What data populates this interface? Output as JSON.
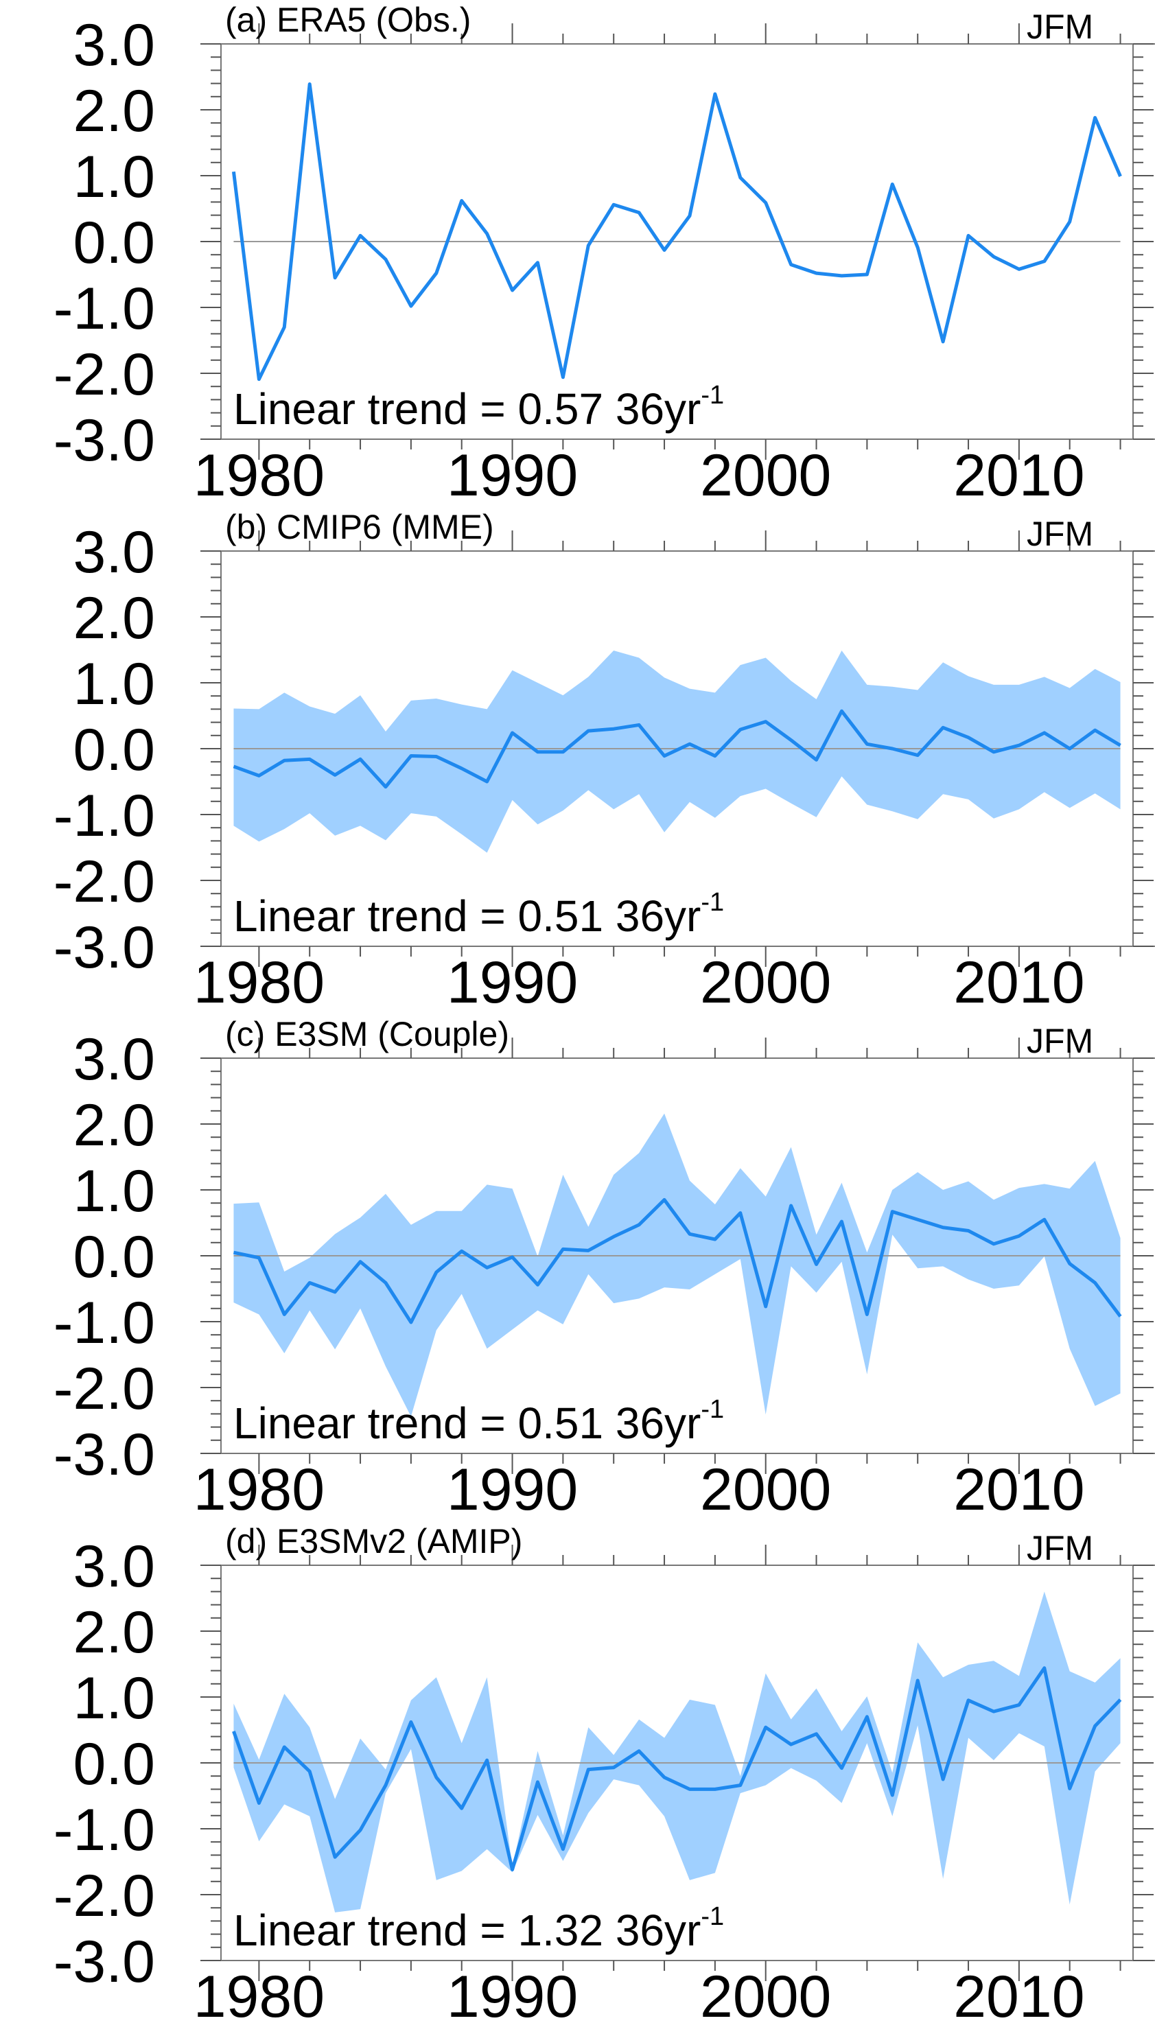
{
  "colors": {
    "line": "#1e88ee",
    "band": "#a0d0ff"
  },
  "chart_data": [
    {
      "type": "line",
      "title": "(a) ERA5 (Obs.)",
      "season": "JFM",
      "trend_label": "Linear trend = 0.57 36yr",
      "trend_superscript": "-1",
      "xlim": [
        1978.5,
        2014.5
      ],
      "ylim": [
        -3,
        3
      ],
      "xticks": [
        1980,
        1990,
        2000,
        2010
      ],
      "xtick_labels": [
        "1980",
        "1990",
        "2000",
        "2010"
      ],
      "yticks": [
        3,
        2,
        1,
        0,
        -1,
        -2,
        -3
      ],
      "ytick_labels": [
        "3.0",
        "2.0",
        "1.0",
        "0.0",
        "-1.0",
        "-2.0",
        "-3.0"
      ],
      "x_start": 1979,
      "series": [
        {
          "name": "mean",
          "values": [
            1.06,
            -2.09,
            -1.3,
            2.39,
            -0.55,
            0.09,
            -0.27,
            -0.98,
            -0.48,
            0.62,
            0.12,
            -0.74,
            -0.32,
            -2.06,
            -0.06,
            0.56,
            0.44,
            -0.13,
            0.39,
            2.24,
            0.97,
            0.59,
            -0.35,
            -0.48,
            -0.52,
            -0.5,
            0.87,
            -0.09,
            -1.52,
            0.09,
            -0.23,
            -0.42,
            -0.3,
            0.3,
            1.88,
            0.99
          ]
        }
      ]
    },
    {
      "type": "line",
      "title": "(b) CMIP6 (MME)",
      "season": "JFM",
      "trend_label": "Linear trend = 0.51 36yr",
      "trend_superscript": "-1",
      "xlim": [
        1978.5,
        2014.5
      ],
      "ylim": [
        -3,
        3
      ],
      "xticks": [
        1980,
        1990,
        2000,
        2010
      ],
      "xtick_labels": [
        "1980",
        "1990",
        "2000",
        "2010"
      ],
      "yticks": [
        3,
        2,
        1,
        0,
        -1,
        -2,
        -3
      ],
      "ytick_labels": [
        "3.0",
        "2.0",
        "1.0",
        "0.0",
        "-1.0",
        "-2.0",
        "-3.0"
      ],
      "x_start": 1979,
      "series": [
        {
          "name": "mean",
          "values": [
            -0.27,
            -0.41,
            -0.18,
            -0.16,
            -0.4,
            -0.16,
            -0.58,
            -0.11,
            -0.12,
            -0.3,
            -0.5,
            0.24,
            -0.05,
            -0.05,
            0.27,
            0.3,
            0.36,
            -0.11,
            0.07,
            -0.11,
            0.29,
            0.41,
            0.13,
            -0.17,
            0.57,
            0.07,
            0.0,
            -0.1,
            0.32,
            0.17,
            -0.05,
            0.05,
            0.24,
            0.0,
            0.28,
            0.05
          ]
        },
        {
          "name": "upper",
          "values": [
            0.61,
            0.6,
            0.85,
            0.64,
            0.53,
            0.81,
            0.26,
            0.73,
            0.76,
            0.67,
            0.6,
            1.19,
            1.0,
            0.81,
            1.09,
            1.49,
            1.38,
            1.08,
            0.91,
            0.85,
            1.27,
            1.38,
            1.03,
            0.75,
            1.49,
            0.97,
            0.94,
            0.89,
            1.31,
            1.1,
            0.97,
            0.97,
            1.09,
            0.92,
            1.21,
            1.01
          ]
        },
        {
          "name": "lower",
          "values": [
            -1.17,
            -1.41,
            -1.22,
            -0.98,
            -1.32,
            -1.17,
            -1.39,
            -0.98,
            -1.03,
            -1.3,
            -1.58,
            -0.78,
            -1.15,
            -0.94,
            -0.63,
            -0.92,
            -0.69,
            -1.27,
            -0.81,
            -1.05,
            -0.72,
            -0.61,
            -0.83,
            -1.04,
            -0.42,
            -0.85,
            -0.95,
            -1.07,
            -0.69,
            -0.77,
            -1.06,
            -0.92,
            -0.66,
            -0.9,
            -0.68,
            -0.92
          ]
        }
      ]
    },
    {
      "type": "line",
      "title": "(c) E3SM (Couple)",
      "season": "JFM",
      "trend_label": "Linear trend = 0.51 36yr",
      "trend_superscript": "-1",
      "xlim": [
        1978.5,
        2014.5
      ],
      "ylim": [
        -3,
        3
      ],
      "xticks": [
        1980,
        1990,
        2000,
        2010
      ],
      "xtick_labels": [
        "1980",
        "1990",
        "2000",
        "2010"
      ],
      "yticks": [
        3,
        2,
        1,
        0,
        -1,
        -2,
        -3
      ],
      "ytick_labels": [
        "3.0",
        "2.0",
        "1.0",
        "0.0",
        "-1.0",
        "-2.0",
        "-3.0"
      ],
      "x_start": 1979,
      "series": [
        {
          "name": "mean",
          "values": [
            0.05,
            -0.03,
            -0.89,
            -0.41,
            -0.55,
            -0.09,
            -0.41,
            -1.01,
            -0.25,
            0.07,
            -0.18,
            -0.02,
            -0.44,
            0.1,
            0.08,
            0.29,
            0.47,
            0.85,
            0.33,
            0.25,
            0.65,
            -0.77,
            0.76,
            -0.13,
            0.52,
            -0.89,
            0.67,
            0.55,
            0.43,
            0.38,
            0.18,
            0.3,
            0.55,
            -0.12,
            -0.41,
            -0.92
          ]
        },
        {
          "name": "upper",
          "values": [
            0.79,
            0.81,
            -0.24,
            -0.03,
            0.33,
            0.58,
            0.94,
            0.47,
            0.68,
            0.68,
            1.08,
            1.02,
            -0.01,
            1.23,
            0.44,
            1.23,
            1.56,
            2.16,
            1.14,
            0.78,
            1.33,
            0.9,
            1.65,
            0.32,
            1.11,
            0.05,
            1.0,
            1.27,
            1.0,
            1.13,
            0.85,
            1.03,
            1.09,
            1.02,
            1.44,
            0.27
          ]
        },
        {
          "name": "lower",
          "values": [
            -0.71,
            -0.89,
            -1.48,
            -0.83,
            -1.42,
            -0.8,
            -1.68,
            -2.44,
            -1.13,
            -0.58,
            -1.41,
            -1.12,
            -0.83,
            -1.04,
            -0.28,
            -0.72,
            -0.65,
            -0.48,
            -0.51,
            -0.28,
            -0.05,
            -2.41,
            -0.16,
            -0.56,
            -0.09,
            -1.8,
            0.32,
            -0.19,
            -0.16,
            -0.36,
            -0.5,
            -0.45,
            -0.01,
            -1.41,
            -2.28,
            -2.09
          ]
        }
      ]
    },
    {
      "type": "line",
      "title": "(d) E3SMv2 (AMIP)",
      "season": "JFM",
      "trend_label": "Linear trend = 1.32 36yr",
      "trend_superscript": "-1",
      "xlim": [
        1978.5,
        2014.5
      ],
      "ylim": [
        -3,
        3
      ],
      "xticks": [
        1980,
        1990,
        2000,
        2010
      ],
      "xtick_labels": [
        "1980",
        "1990",
        "2000",
        "2010"
      ],
      "yticks": [
        3,
        2,
        1,
        0,
        -1,
        -2,
        -3
      ],
      "ytick_labels": [
        "3.0",
        "2.0",
        "1.0",
        "0.0",
        "-1.0",
        "-2.0",
        "-3.0"
      ],
      "x_start": 1979,
      "series": [
        {
          "name": "mean",
          "values": [
            0.48,
            -0.61,
            0.24,
            -0.13,
            -1.43,
            -1.02,
            -0.34,
            0.62,
            -0.22,
            -0.69,
            0.04,
            -1.62,
            -0.29,
            -1.31,
            -0.1,
            -0.07,
            0.18,
            -0.22,
            -0.4,
            -0.4,
            -0.34,
            0.54,
            0.28,
            0.44,
            -0.08,
            0.7,
            -0.49,
            1.25,
            -0.25,
            0.95,
            0.78,
            0.88,
            1.44,
            -0.39,
            0.56,
            0.96
          ]
        },
        {
          "name": "upper",
          "values": [
            0.9,
            0.05,
            1.05,
            0.54,
            -0.55,
            0.37,
            -0.1,
            0.95,
            1.3,
            0.3,
            1.3,
            -1.58,
            0.18,
            -1.1,
            0.54,
            0.12,
            0.66,
            0.38,
            0.96,
            0.88,
            -0.2,
            1.36,
            0.66,
            1.13,
            0.48,
            1.01,
            -0.15,
            1.83,
            1.3,
            1.49,
            1.55,
            1.32,
            2.6,
            1.39,
            1.22,
            1.59
          ]
        },
        {
          "name": "lower",
          "values": [
            -0.07,
            -1.19,
            -0.63,
            -0.81,
            -2.27,
            -2.22,
            -0.46,
            0.21,
            -1.78,
            -1.64,
            -1.31,
            -1.66,
            -0.79,
            -1.49,
            -0.76,
            -0.25,
            -0.34,
            -0.81,
            -1.78,
            -1.67,
            -0.46,
            -0.34,
            -0.08,
            -0.27,
            -0.61,
            0.3,
            -0.81,
            0.57,
            -1.76,
            0.38,
            0.04,
            0.45,
            0.25,
            -2.15,
            -0.13,
            0.3
          ]
        }
      ]
    }
  ]
}
